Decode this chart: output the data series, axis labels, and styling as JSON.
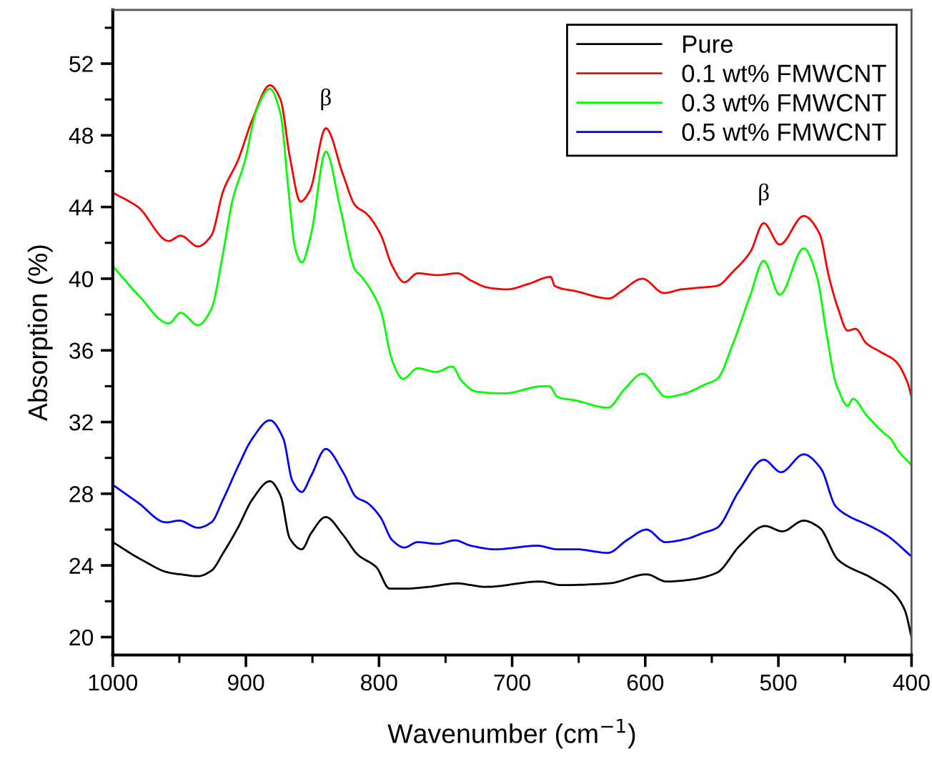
{
  "chart_data": {
    "type": "line",
    "xlabel": "Wavenumber (cm$^{−1}$)",
    "ylabel": "Absorption (%)",
    "xlim": [
      1000,
      400
    ],
    "ylim": [
      19,
      55
    ],
    "xticks": [
      1000,
      {
        "value": 950,
        "label": null
      },
      900,
      {
        "value": 850,
        "label": null
      },
      800,
      {
        "value": 750,
        "label": null
      },
      700,
      {
        "value": 650,
        "label": null
      },
      600,
      {
        "value": 550,
        "label": null
      },
      500,
      {
        "value": 450,
        "label": null
      },
      400
    ],
    "yticks": [
      20,
      {
        "value": 22,
        "label": null
      },
      24,
      {
        "value": 26,
        "label": null
      },
      28,
      {
        "value": 30,
        "label": null
      },
      32,
      {
        "value": 34,
        "label": null
      },
      36,
      {
        "value": 38,
        "label": null
      },
      40,
      {
        "value": 42,
        "label": null
      },
      44,
      {
        "value": 46,
        "label": null
      },
      48,
      {
        "value": 50,
        "label": null
      },
      52,
      {
        "value": 54,
        "label": null
      }
    ],
    "legend": "top right",
    "line_style": "solid",
    "annotations": [
      {
        "text": "β",
        "x": 840,
        "y": 48.4
      },
      {
        "text": "β",
        "x": 511,
        "y": 43.1
      }
    ],
    "series": [
      {
        "name": "Pure",
        "color": "#000000",
        "x": [
          1000,
          978,
          958,
          949,
          936,
          926,
          917,
          906,
          895,
          882,
          874,
          867,
          858,
          851,
          840,
          827,
          816,
          802,
          792,
          781,
          763,
          741,
          731,
          720,
          679,
          663,
          627,
          599,
          584,
          566,
          546,
          529,
          510,
          497,
          481,
          469,
          455,
          430,
          414,
          405,
          400
        ],
        "values": [
          25.3,
          24.3,
          23.6,
          23.5,
          23.4,
          23.7,
          24.7,
          26.1,
          27.7,
          28.7,
          27.9,
          25.5,
          24.9,
          25.8,
          26.7,
          25.7,
          24.6,
          23.9,
          22.7,
          22.7,
          22.8,
          23.0,
          22.9,
          22.8,
          23.1,
          22.9,
          23.0,
          23.5,
          23.1,
          23.2,
          23.6,
          25.1,
          26.2,
          25.9,
          26.5,
          26.1,
          24.3,
          23.3,
          22.5,
          21.5,
          20.0
        ]
      },
      {
        "name": "0.1 wt% FMWCNT",
        "color": "#ff0000",
        "x": [
          1000,
          981,
          958,
          949,
          936,
          926,
          917,
          906,
          895,
          882,
          874,
          867,
          859,
          852,
          840,
          827,
          818,
          809,
          799,
          790,
          781,
          771,
          756,
          741,
          731,
          718,
          704,
          688,
          671,
          668,
          652,
          627,
          618,
          602,
          586,
          573,
          559,
          546,
          534,
          521,
          511,
          499,
          481,
          469,
          462,
          455,
          448,
          442,
          434,
          423,
          412,
          403,
          400
        ],
        "values": [
          44.8,
          44.0,
          42.1,
          42.4,
          41.8,
          42.4,
          44.9,
          46.6,
          48.9,
          50.8,
          50.0,
          46.8,
          44.3,
          44.9,
          48.4,
          45.8,
          44.1,
          43.6,
          42.5,
          40.7,
          39.8,
          40.3,
          40.2,
          40.3,
          39.9,
          39.5,
          39.4,
          39.7,
          40.1,
          39.6,
          39.3,
          38.9,
          39.3,
          40.0,
          39.2,
          39.4,
          39.5,
          39.6,
          40.4,
          41.5,
          43.1,
          41.9,
          43.5,
          42.5,
          40.1,
          38.3,
          37.1,
          37.2,
          36.4,
          35.9,
          35.4,
          34.2,
          33.4
        ]
      },
      {
        "name": "0.3 wt% FMWCNT",
        "color": "#00ff00",
        "x": [
          1000,
          981,
          958,
          949,
          936,
          926,
          917,
          910,
          901,
          892,
          882,
          874,
          868,
          863,
          858,
          851,
          840,
          829,
          818,
          813,
          799,
          790,
          782,
          771,
          757,
          745,
          738,
          727,
          706,
          677,
          672,
          666,
          652,
          628,
          616,
          602,
          584,
          570,
          555,
          546,
          534,
          521,
          511,
          499,
          481,
          471,
          464,
          457,
          455,
          448,
          444,
          434,
          421,
          416,
          410,
          400
        ],
        "values": [
          40.7,
          39.1,
          37.5,
          38.1,
          37.4,
          38.3,
          41.5,
          44.4,
          46.5,
          49.4,
          50.6,
          49.2,
          44.9,
          41.7,
          40.9,
          42.5,
          47.1,
          43.9,
          40.5,
          40.1,
          38.3,
          35.4,
          34.4,
          35.0,
          34.8,
          35.1,
          34.3,
          33.7,
          33.6,
          34.0,
          34.0,
          33.4,
          33.2,
          32.8,
          33.8,
          34.7,
          33.4,
          33.6,
          34.1,
          34.4,
          36.4,
          39.1,
          41.0,
          39.1,
          41.7,
          40.1,
          37.0,
          34.2,
          33.8,
          32.9,
          33.3,
          32.4,
          31.4,
          31.1,
          30.4,
          29.6
        ]
      },
      {
        "name": "0.5 wt% FMWCNT",
        "color": "#0000ff",
        "x": [
          1000,
          981,
          960,
          950,
          936,
          926,
          917,
          906,
          895,
          882,
          872,
          865,
          858,
          851,
          840,
          827,
          817,
          809,
          799,
          790,
          781,
          771,
          756,
          743,
          731,
          713,
          681,
          666,
          652,
          628,
          614,
          599,
          585,
          568,
          557,
          546,
          530,
          511,
          498,
          481,
          468,
          457,
          446,
          434,
          419,
          400
        ],
        "values": [
          28.5,
          27.5,
          26.4,
          26.5,
          26.1,
          26.4,
          27.7,
          29.5,
          31.1,
          32.1,
          31.1,
          28.7,
          28.1,
          29.0,
          30.5,
          29.2,
          27.8,
          27.5,
          26.7,
          25.4,
          25.0,
          25.3,
          25.2,
          25.4,
          25.1,
          24.9,
          25.1,
          24.9,
          24.9,
          24.7,
          25.4,
          26.0,
          25.3,
          25.5,
          25.8,
          26.1,
          28.1,
          29.9,
          29.2,
          30.2,
          29.4,
          27.3,
          26.7,
          26.3,
          25.7,
          24.5
        ]
      }
    ]
  }
}
